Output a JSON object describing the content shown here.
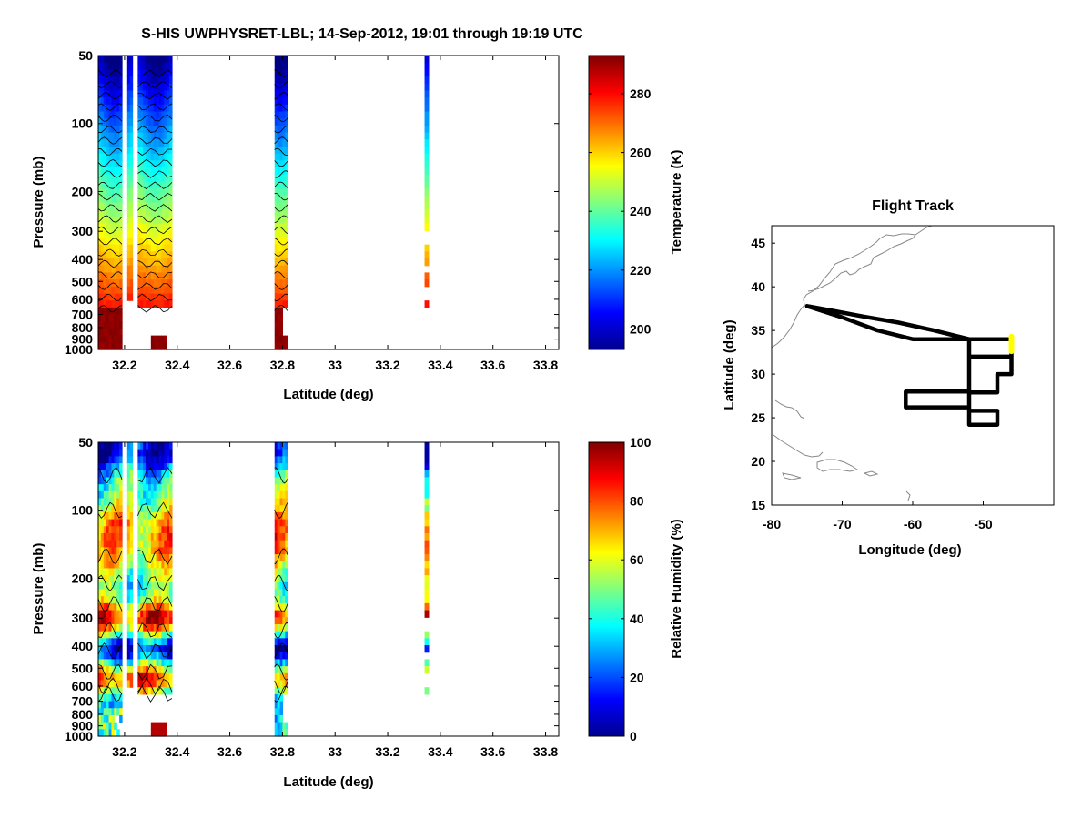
{
  "figure_title": "S-HIS UWPHYSRET-LBL;   14-Sep-2012, 19:01 through 19:19 UTC",
  "colors": {
    "sampled_lat": [
      "#0000b8",
      "#2040ff",
      "#00a0ff",
      "#40ffc0",
      "#ffff00",
      "#ff8000",
      "#ff1000",
      "#800000"
    ]
  },
  "chart_data": [
    {
      "id": "temperature",
      "type": "heatmap",
      "title": "",
      "xlabel": "Latitude (deg)",
      "ylabel": "Pressure (mb)",
      "xlim": [
        32.1,
        33.85
      ],
      "ylim": [
        1000,
        50
      ],
      "yscale": "log",
      "xticks": [
        32.2,
        32.4,
        32.6,
        32.8,
        33,
        33.2,
        33.4,
        33.6,
        33.8
      ],
      "xtick_labels": [
        "32.2",
        "32.4",
        "32.6",
        "32.8",
        "33",
        "33.2",
        "33.4",
        "33.6",
        "33.8"
      ],
      "yticks": [
        50,
        100,
        200,
        300,
        400,
        500,
        600,
        700,
        800,
        900,
        1000
      ],
      "ytick_labels": [
        "50",
        "100",
        "200",
        "300",
        "400",
        "500",
        "600",
        "700",
        "800",
        "900",
        "1000"
      ],
      "data_lat_ranges": [
        [
          32.1,
          32.19
        ],
        [
          32.21,
          32.23
        ],
        [
          32.25,
          32.38
        ],
        [
          32.77,
          32.82
        ],
        [
          33.34,
          33.355
        ]
      ],
      "colorbar": {
        "label": "Temperature (K)",
        "range": [
          193,
          293
        ],
        "ticks": [
          200,
          220,
          240,
          260,
          280
        ],
        "tick_labels": [
          "200",
          "220",
          "240",
          "260",
          "280"
        ]
      }
    },
    {
      "id": "humidity",
      "type": "heatmap",
      "title": "",
      "xlabel": "Latitude (deg)",
      "ylabel": "Pressure (mb)",
      "xlim": [
        32.1,
        33.85
      ],
      "ylim": [
        1000,
        50
      ],
      "yscale": "log",
      "xticks": [
        32.2,
        32.4,
        32.6,
        32.8,
        33,
        33.2,
        33.4,
        33.6,
        33.8
      ],
      "xtick_labels": [
        "32.2",
        "32.4",
        "32.6",
        "32.8",
        "33",
        "33.2",
        "33.4",
        "33.6",
        "33.8"
      ],
      "yticks": [
        50,
        100,
        200,
        300,
        400,
        500,
        600,
        700,
        800,
        900,
        1000
      ],
      "ytick_labels": [
        "50",
        "100",
        "200",
        "300",
        "400",
        "500",
        "600",
        "700",
        "800",
        "900",
        "1000"
      ],
      "data_lat_ranges": [
        [
          32.1,
          32.19
        ],
        [
          32.21,
          32.23
        ],
        [
          32.25,
          32.38
        ],
        [
          32.77,
          32.82
        ],
        [
          33.34,
          33.355
        ]
      ],
      "colorbar": {
        "label": "Relative Humidity (%)",
        "range": [
          0,
          100
        ],
        "ticks": [
          0,
          20,
          40,
          60,
          80,
          100
        ],
        "tick_labels": [
          "0",
          "20",
          "40",
          "60",
          "80",
          "100"
        ]
      }
    },
    {
      "id": "flight_track",
      "type": "line",
      "title": "Flight Track",
      "xlabel": "Longitude (deg)",
      "ylabel": "Latitude (deg)",
      "xlim": [
        -80,
        -40
      ],
      "ylim": [
        15,
        47
      ],
      "xticks": [
        -80,
        -70,
        -60,
        -50
      ],
      "xtick_labels": [
        "-80",
        "-70",
        "-60",
        "-50"
      ],
      "yticks": [
        15,
        20,
        25,
        30,
        35,
        40,
        45
      ],
      "ytick_labels": [
        "15",
        "20",
        "25",
        "30",
        "35",
        "40",
        "45"
      ],
      "series": [
        {
          "name": "track",
          "x": [
            -75,
            -71,
            -67,
            -62,
            -57,
            -52,
            -52,
            -46,
            -46,
            -52,
            -52,
            -46,
            -46,
            -48,
            -48,
            -52,
            -52,
            -61,
            -61,
            -52,
            -52,
            -48,
            -48,
            -52,
            -52,
            -55,
            -60,
            -65,
            -70,
            -75
          ],
          "y": [
            37.8,
            37.2,
            36.6,
            35.9,
            35.0,
            34.0,
            34.0,
            34.0,
            32.0,
            32.0,
            32.0,
            32.0,
            30.0,
            30.0,
            27.9,
            27.9,
            26.2,
            26.2,
            28.0,
            28.0,
            24.2,
            24.2,
            25.8,
            25.8,
            34.0,
            34.0,
            34.0,
            35.0,
            36.5,
            37.8
          ]
        },
        {
          "name": "current segment",
          "x": [
            -46,
            -46
          ],
          "y": [
            32.6,
            34.3
          ]
        }
      ]
    }
  ]
}
